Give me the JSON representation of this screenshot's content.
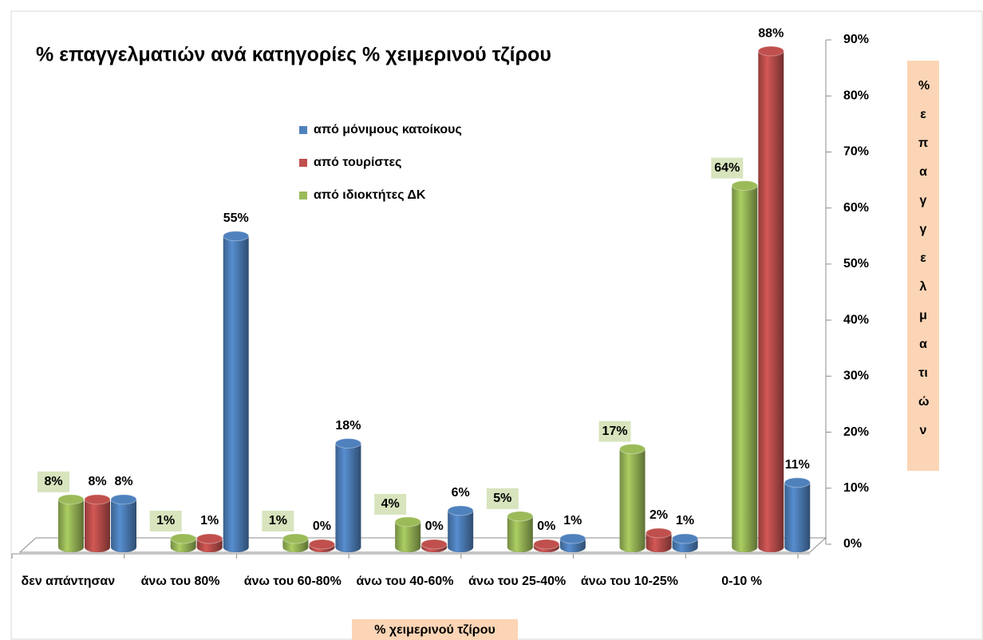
{
  "chart_data": {
    "type": "bar",
    "title": "% επαγγελματιών ανά κατηγορίες % χειμερινού τζίρου",
    "x_label": "% χειμερινού τζίρου",
    "y_label": "% επαγγελματιών",
    "categories": [
      "δεν απάντησαν",
      "άνω του 80%",
      "άνω του 60-80%",
      "άνω του 40-60%",
      "άνω του 25-40%",
      "άνω του 10-25%",
      "0-10 %"
    ],
    "series": [
      {
        "name": "από μόνιμους κατοίκους",
        "color": "#4f81bd",
        "values": [
          8,
          55,
          18,
          6,
          1,
          1,
          11
        ],
        "value_labels": [
          "8%",
          "55%",
          "18%",
          "6%",
          "1%",
          "1%",
          "11%"
        ]
      },
      {
        "name": "από τουρίστες",
        "color": "#c0504d",
        "values": [
          8,
          1,
          0,
          0,
          0,
          2,
          88
        ],
        "value_labels": [
          "8%",
          "1%",
          "0%",
          "0%",
          "0%",
          "2%",
          "88%"
        ]
      },
      {
        "name": "από ιδιοκτήτες ΔΚ",
        "color": "#9bbb59",
        "values": [
          8,
          1,
          1,
          4,
          5,
          17,
          64
        ],
        "value_labels": [
          "8%",
          "1%",
          "1%",
          "4%",
          "5%",
          "17%",
          "64%"
        ]
      }
    ],
    "ylim": [
      0,
      90
    ],
    "yticks": [
      {
        "value": 0,
        "label": "0%"
      },
      {
        "value": 10,
        "label": "10%"
      },
      {
        "value": 20,
        "label": "20%"
      },
      {
        "value": 30,
        "label": "30%"
      },
      {
        "value": 40,
        "label": "40%"
      },
      {
        "value": 50,
        "label": "50%"
      },
      {
        "value": 60,
        "label": "60%"
      },
      {
        "value": 70,
        "label": "70%"
      },
      {
        "value": 80,
        "label": "80%"
      },
      {
        "value": 90,
        "label": "90%"
      }
    ],
    "y_axis_side": "right"
  }
}
